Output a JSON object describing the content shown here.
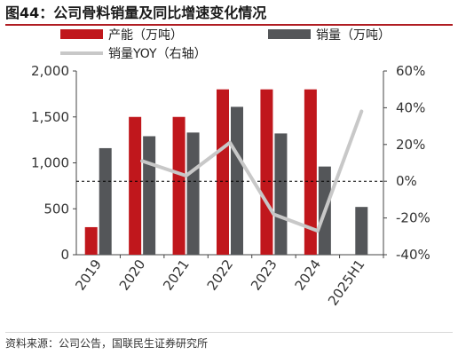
{
  "title": "图44：公司骨料销量及同比增速变化情况",
  "source": "资料来源：公司公告，国联民生证券研究所",
  "colors": {
    "capacity": "#c0171c",
    "sales": "#545659",
    "yoy": "#c8c8c8",
    "zero_line": "#000000"
  },
  "chart_data": {
    "type": "bar",
    "categories": [
      "2019",
      "2020",
      "2021",
      "2022",
      "2023",
      "2024",
      "2025H1"
    ],
    "series": [
      {
        "name": "产能（万吨）",
        "type": "bar",
        "axis": "left",
        "values": [
          300,
          1500,
          1500,
          1800,
          1800,
          1800,
          null
        ]
      },
      {
        "name": "销量（万吨）",
        "type": "bar",
        "axis": "left",
        "values": [
          1160,
          1290,
          1330,
          1610,
          1320,
          960,
          520
        ]
      },
      {
        "name": "销量YOY（右轴）",
        "type": "line",
        "axis": "right",
        "values": [
          null,
          11,
          3,
          21,
          -18,
          -27,
          38
        ]
      }
    ],
    "y_left": {
      "min": 0,
      "max": 2000,
      "step": 500,
      "ticks": [
        "0",
        "500",
        "1,000",
        "1,500",
        "2,000"
      ]
    },
    "y_right": {
      "min": -40,
      "max": 60,
      "step": 20,
      "ticks": [
        "-40%",
        "-20%",
        "0%",
        "20%",
        "40%",
        "60%"
      ]
    },
    "reference_line": {
      "axis": "right",
      "value": 0,
      "style": "dashed"
    },
    "legend_position": "top",
    "grid": false
  }
}
